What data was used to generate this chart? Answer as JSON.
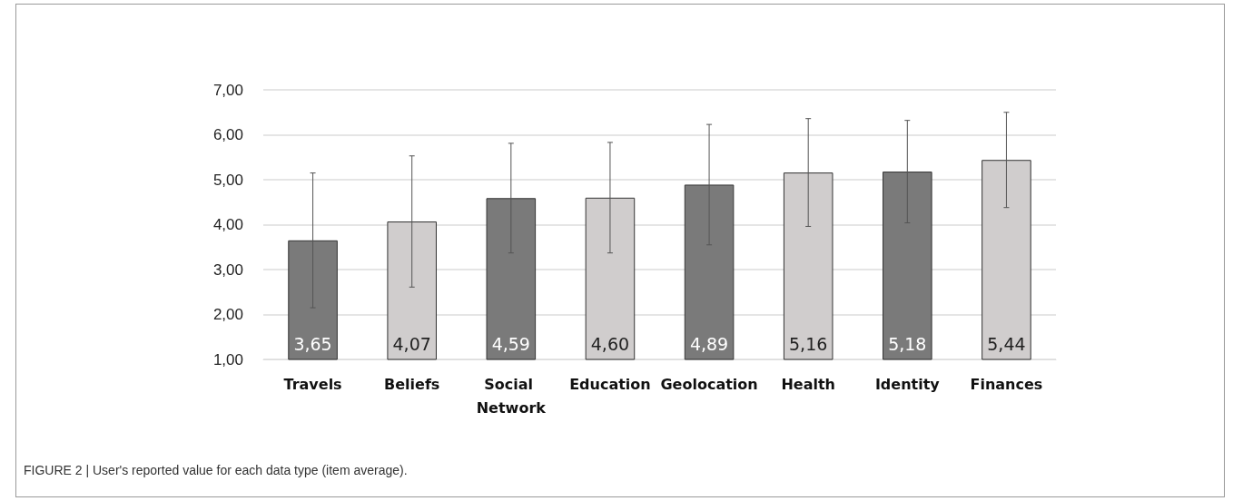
{
  "chart_data": {
    "type": "bar",
    "categories": [
      "Travels",
      "Beliefs",
      "Social Network",
      "Education",
      "Geolocation",
      "Health",
      "Identity",
      "Finances"
    ],
    "values": [
      3.65,
      4.07,
      4.59,
      4.6,
      4.89,
      5.16,
      5.18,
      5.44
    ],
    "colors": [
      "#7a7a7a",
      "#d0cdcd",
      "#7a7a7a",
      "#d0cdcd",
      "#7a7a7a",
      "#d0cdcd",
      "#7a7a7a",
      "#d0cdcd"
    ],
    "errors": [
      1.5,
      1.46,
      1.22,
      1.23,
      1.34,
      1.2,
      1.14,
      1.06
    ],
    "value_labels": [
      "3,65",
      "4,07",
      "4,59",
      "4,60",
      "4,89",
      "5,16",
      "5,18",
      "5,44"
    ],
    "ylim": [
      1,
      7
    ],
    "yticks": [
      {
        "value": 1,
        "label": "1,00"
      },
      {
        "value": 2,
        "label": "2,00"
      },
      {
        "value": 3,
        "label": "3,00"
      },
      {
        "value": 4,
        "label": "4,00"
      },
      {
        "value": 5,
        "label": "5,00"
      },
      {
        "value": 6,
        "label": "6,00"
      },
      {
        "value": 7,
        "label": "7,00"
      }
    ],
    "grid": "y",
    "annotations": [
      "FIGURE 2 | User's reported value for each data type (item average)."
    ]
  }
}
